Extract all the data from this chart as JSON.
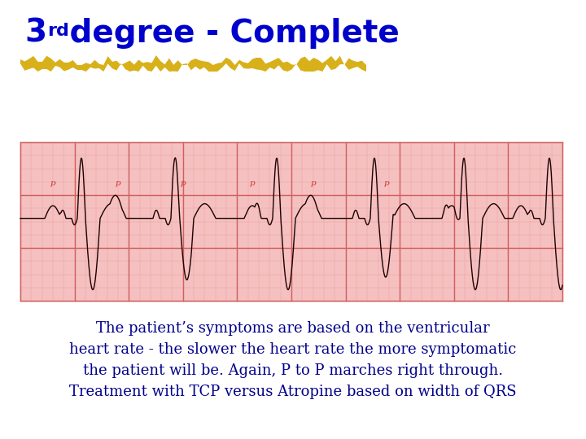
{
  "title_3": "3",
  "title_rd": "rd",
  "title_rest": " degree - Complete",
  "title_color": "#0000CC",
  "title_fontsize": 28,
  "title_superscript_fontsize": 16,
  "body_text": "The patient’s symptoms are based on the ventricular\nheart rate - the slower the heart rate the more symptomatic\nthe patient will be. Again, P to P marches right through.\nTreatment with TCP versus Atropine based on width of QRS",
  "body_color": "#00008B",
  "body_fontsize": 13.0,
  "bg_color": "#FFFFFF",
  "ecg_bg": "#F5C0C0",
  "ecg_grid_minor": "#F0A0A0",
  "ecg_grid_major": "#D06060",
  "ecg_line_color": "#1a0000",
  "highlight_color": "#D4A800"
}
